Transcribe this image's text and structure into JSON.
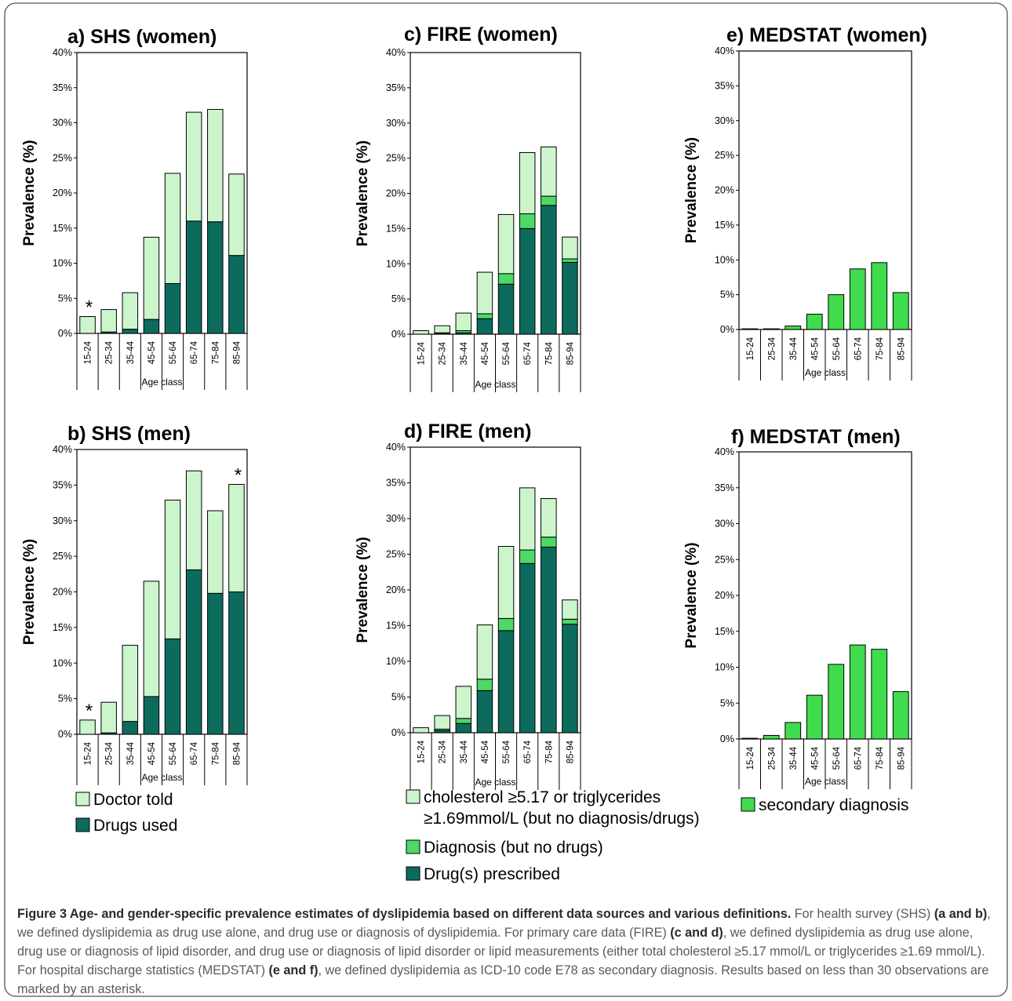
{
  "colors": {
    "doctor_told": "#ccf5cc",
    "drugs": "#0d6b5e",
    "diagnosis": "#4cd966",
    "secondary": "#3fdd4e",
    "lipid": "#ccf5cc"
  },
  "chart_data": [
    {
      "type": "bar",
      "title": "a) SHS (women)",
      "xlabel": "Age class",
      "ylabel": "Prevalence (%)",
      "ylim": [
        0,
        40
      ],
      "yticks": [
        "0%",
        "5%",
        "10%",
        "15%",
        "20%",
        "25%",
        "30%",
        "35%",
        "40%"
      ],
      "categories": [
        "15-24",
        "25-34",
        "35-44",
        "45-54",
        "55-64",
        "65-74",
        "75-84",
        "85-94"
      ],
      "stacked": true,
      "series": [
        {
          "name": "Drugs used",
          "color_key": "drugs",
          "values": [
            0,
            0.2,
            0.6,
            2.0,
            7.1,
            16.0,
            15.9,
            11.1
          ]
        },
        {
          "name": "Doctor told",
          "color_key": "doctor_told",
          "values": [
            2.4,
            3.2,
            5.2,
            11.7,
            15.7,
            15.5,
            16.0,
            11.6
          ]
        }
      ],
      "annotations": [
        {
          "text": "*",
          "category": "15-24"
        }
      ]
    },
    {
      "type": "bar",
      "title": "b) SHS (men)",
      "xlabel": "Age class",
      "ylabel": "Prevalence (%)",
      "ylim": [
        0,
        40
      ],
      "yticks": [
        "0%",
        "5%",
        "10%",
        "15%",
        "20%",
        "25%",
        "30%",
        "35%",
        "40%"
      ],
      "categories": [
        "15-24",
        "25-34",
        "35-44",
        "45-54",
        "55-64",
        "65-74",
        "75-84",
        "85-94"
      ],
      "stacked": true,
      "series": [
        {
          "name": "Drugs used",
          "color_key": "drugs",
          "values": [
            0,
            0.2,
            1.8,
            5.3,
            13.4,
            23.1,
            19.8,
            20.0
          ]
        },
        {
          "name": "Doctor told",
          "color_key": "doctor_told",
          "values": [
            2.0,
            4.3,
            10.7,
            16.2,
            19.5,
            13.9,
            11.6,
            15.1
          ]
        }
      ],
      "annotations": [
        {
          "text": "*",
          "category": "15-24"
        },
        {
          "text": "*",
          "category": "85-94"
        }
      ]
    },
    {
      "type": "bar",
      "title": "c) FIRE (women)",
      "xlabel": "Age class",
      "ylabel": "Prevalence (%)",
      "ylim": [
        0,
        40
      ],
      "yticks": [
        "0%",
        "5%",
        "10%",
        "15%",
        "20%",
        "25%",
        "30%",
        "35%",
        "40%"
      ],
      "categories": [
        "15-24",
        "25-34",
        "35-44",
        "45-54",
        "55-64",
        "65-74",
        "75-84",
        "85-94"
      ],
      "stacked": true,
      "series": [
        {
          "name": "Drug(s) prescribed",
          "color_key": "drugs",
          "values": [
            0,
            0.1,
            0.2,
            2.2,
            7.1,
            15.0,
            18.3,
            10.2
          ]
        },
        {
          "name": "Diagnosis (but no drugs)",
          "color_key": "diagnosis",
          "values": [
            0,
            0.1,
            0.3,
            0.7,
            1.5,
            2.1,
            1.3,
            0.5
          ]
        },
        {
          "name": "cholesterol ≥5.17 or triglycerides ≥1.69mmol/L (but no diagnosis/drugs)",
          "color_key": "lipid",
          "values": [
            0.5,
            1.0,
            2.5,
            5.9,
            8.4,
            8.7,
            7.0,
            3.1
          ]
        }
      ]
    },
    {
      "type": "bar",
      "title": "d) FIRE (men)",
      "xlabel": "Age class",
      "ylabel": "Prevalence (%)",
      "ylim": [
        0,
        40
      ],
      "yticks": [
        "0%",
        "5%",
        "10%",
        "15%",
        "20%",
        "25%",
        "30%",
        "35%",
        "40%"
      ],
      "categories": [
        "15-24",
        "25-34",
        "35-44",
        "45-54",
        "55-64",
        "65-74",
        "75-84",
        "85-94"
      ],
      "stacked": true,
      "series": [
        {
          "name": "Drug(s) prescribed",
          "color_key": "drugs",
          "values": [
            0,
            0.3,
            1.3,
            5.9,
            14.3,
            23.7,
            26.0,
            15.2
          ]
        },
        {
          "name": "Diagnosis (but no drugs)",
          "color_key": "diagnosis",
          "values": [
            0,
            0.2,
            0.7,
            1.6,
            1.7,
            1.9,
            1.4,
            0.7
          ]
        },
        {
          "name": "cholesterol ≥5.17 or triglycerides ≥1.69mmol/L (but no diagnosis/drugs)",
          "color_key": "lipid",
          "values": [
            0.7,
            1.9,
            4.5,
            7.6,
            10.1,
            8.7,
            5.4,
            2.7
          ]
        }
      ]
    },
    {
      "type": "bar",
      "title": "e) MEDSTAT (women)",
      "xlabel": "Age class",
      "ylabel": "Prevalence (%)",
      "ylim": [
        0,
        40
      ],
      "yticks": [
        "0%",
        "5%",
        "10%",
        "15%",
        "20%",
        "25%",
        "30%",
        "35%",
        "40%"
      ],
      "categories": [
        "15-24",
        "25-34",
        "35-44",
        "45-54",
        "55-64",
        "65-74",
        "75-84",
        "85-94"
      ],
      "stacked": false,
      "series": [
        {
          "name": "secondary diagnosis",
          "color_key": "secondary",
          "values": [
            0.1,
            0.1,
            0.5,
            2.2,
            5.0,
            8.7,
            9.6,
            5.3
          ]
        }
      ]
    },
    {
      "type": "bar",
      "title": "f) MEDSTAT (men)",
      "xlabel": "Age class",
      "ylabel": "Prevalence (%)",
      "ylim": [
        0,
        40
      ],
      "yticks": [
        "0%",
        "5%",
        "10%",
        "15%",
        "20%",
        "25%",
        "30%",
        "35%",
        "40%"
      ],
      "categories": [
        "15-24",
        "25-34",
        "35-44",
        "45-54",
        "55-64",
        "65-74",
        "75-84",
        "85-94"
      ],
      "stacked": false,
      "series": [
        {
          "name": "secondary diagnosis",
          "color_key": "secondary",
          "values": [
            0.1,
            0.5,
            2.3,
            6.1,
            10.4,
            13.1,
            12.5,
            6.6
          ]
        }
      ]
    }
  ],
  "legends": {
    "shs": [
      {
        "label": "Doctor told",
        "color_key": "doctor_told"
      },
      {
        "label": "Drugs used",
        "color_key": "drugs"
      }
    ],
    "fire": [
      {
        "label": "cholesterol ≥5.17 or triglycerides",
        "label_line2": "≥1.69mmol/L (but no diagnosis/drugs)",
        "color_key": "lipid"
      },
      {
        "label": "Diagnosis (but no drugs)",
        "color_key": "diagnosis"
      },
      {
        "label": "Drug(s) prescribed",
        "color_key": "drugs"
      }
    ],
    "medstat": [
      {
        "label": "secondary diagnosis",
        "color_key": "secondary"
      }
    ]
  },
  "caption": {
    "label": "Figure 3 Age- and gender-specific prevalence estimates of dyslipidemia based on different data sources and various definitions.",
    "t1": " For health survey (SHS) ",
    "b1": "(a and b)",
    "t2": ", we defined dyslipidemia as drug use alone, and drug use or diagnosis of dyslipidemia. For primary care data (FIRE) ",
    "b2": "(c and d)",
    "t3": ", we defined dyslipidemia as drug use alone, drug use or diagnosis of lipid disorder, and drug use or diagnosis of lipid disorder or lipid measurements (either total cholesterol ≥5.17 mmol/L or triglycerides ≥1.69 mmol/L). For hospital discharge statistics (MEDSTAT) ",
    "b3": "(e and f)",
    "t4": ", we defined dyslipidemia as ICD-10 code E78 as secondary diagnosis. Results based on less than 30 observations are marked by an asterisk."
  }
}
